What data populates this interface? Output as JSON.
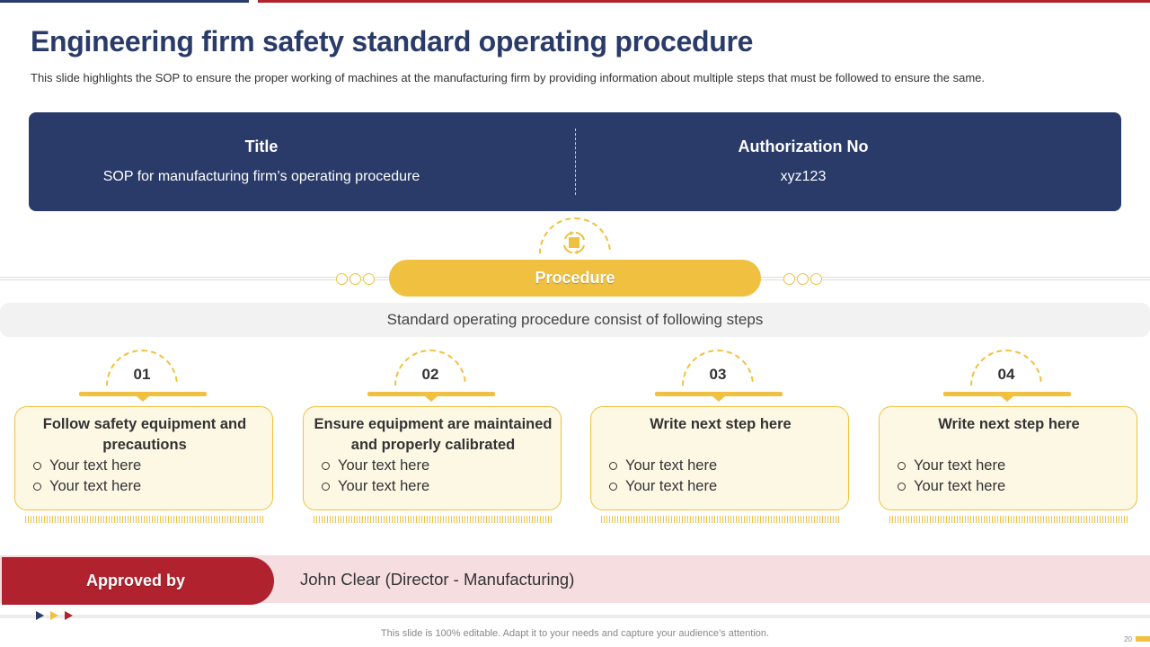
{
  "header": {
    "title": "Engineering firm safety standard operating procedure",
    "subtitle": "This slide highlights the SOP to ensure the proper working of machines at the manufacturing firm by providing information about multiple steps that must be followed to ensure the same."
  },
  "info": {
    "title_label": "Title",
    "title_value": "SOP for manufacturing firm’s operating procedure",
    "auth_label": "Authorization  No",
    "auth_value": "xyz123"
  },
  "procedure": {
    "label": "Procedure",
    "intro": "Standard operating procedure consist of following steps",
    "icon": "process-icon"
  },
  "steps": [
    {
      "number": "01",
      "title": "Follow safety equipment and precautions",
      "bullets": [
        "Your text here",
        "Your text here"
      ]
    },
    {
      "number": "02",
      "title": "Ensure equipment are maintained and properly calibrated",
      "bullets": [
        "Your text here",
        "Your text here"
      ]
    },
    {
      "number": "03",
      "title": "Write next step here",
      "bullets": [
        "Your text here",
        "Your text here"
      ]
    },
    {
      "number": "04",
      "title": "Write next step here",
      "bullets": [
        "Your text here",
        "Your text here"
      ]
    }
  ],
  "approval": {
    "label": "Approved by",
    "value": "John Clear (Director - Manufacturing)"
  },
  "footer": {
    "note": "This slide is 100% editable. Adapt it to your needs and capture your audience’s attention.",
    "page_number": "20"
  },
  "colors": {
    "navy": "#2a3b6a",
    "red": "#b0222e",
    "yellow": "#f0c040",
    "card_bg": "#fdf8e4",
    "approval_bg": "#f5dde0"
  }
}
